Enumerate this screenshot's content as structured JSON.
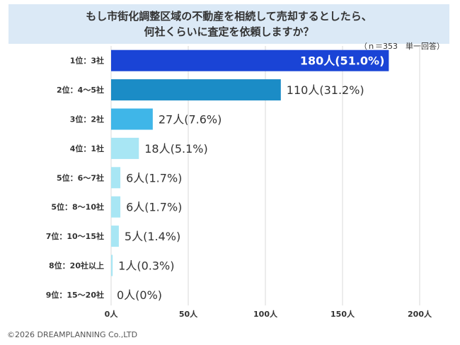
{
  "title_lines": [
    "もし市街化調整区域の不動産を相続して売却するとしたら、",
    "何社くらいに査定を依頼しますか？"
  ],
  "note": "（ｎ＝353　単一回答）",
  "copyright": "©2026 DREAMPLANNING Co.,LTD",
  "colors": {
    "title_bg": "#dbe9f6",
    "bar_1": "#1a44d6",
    "bar_2": "#1b8cc6",
    "bar_3": "#3fb6e8",
    "bar_rest": "#a8e6f4",
    "grid": "#d9d9d9"
  },
  "chart_data": {
    "type": "bar",
    "orientation": "horizontal",
    "categories": [
      "1位：3社",
      "2位：4～5社",
      "3位：2社",
      "4位：1社",
      "5位：6～7社",
      "5位：8～10社",
      "7位：10～15社",
      "8位：20社以上",
      "9位：15～20社"
    ],
    "values": [
      180,
      110,
      27,
      18,
      6,
      6,
      5,
      1,
      0
    ],
    "data_labels": [
      "180人(51.0%)",
      "110人(31.2%)",
      "27人(7.6%)",
      "18人(5.1%)",
      "6人(1.7%)",
      "6人(1.7%)",
      "5人(1.4%)",
      "1人(0.3%)",
      "0人(0%)"
    ],
    "x_ticks": [
      0,
      50,
      100,
      150,
      200
    ],
    "x_tick_labels": [
      "0人",
      "50人",
      "100人",
      "150人",
      "200人"
    ],
    "xlim": [
      0,
      200
    ],
    "grid": true
  }
}
